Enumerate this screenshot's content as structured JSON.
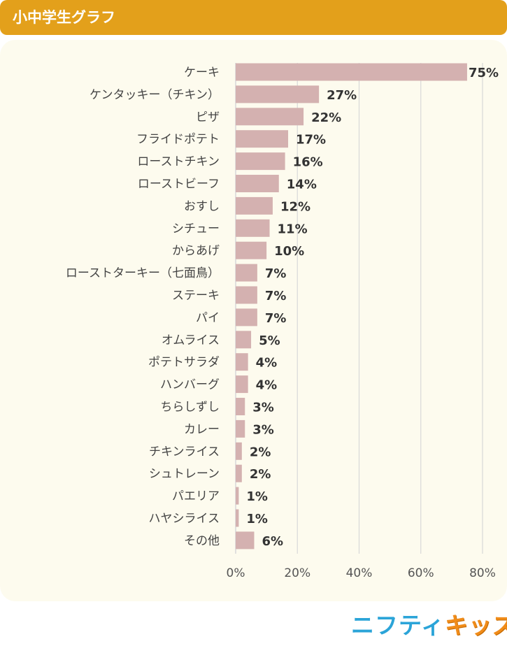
{
  "header": {
    "title": "小中学生グラフ"
  },
  "logo": {
    "part1": "ニフティ",
    "part2": "キッズ"
  },
  "colors": {
    "header": "#e3a01b",
    "panel": "#fdfbee",
    "bar": "#d4b1b0",
    "grid": "#d8d8d8",
    "label": "#444444",
    "value": "#333333"
  },
  "chart_data": {
    "type": "bar",
    "orientation": "horizontal",
    "categories": [
      "ケーキ",
      "ケンタッキー（チキン）",
      "ピザ",
      "フライドポテト",
      "ローストチキン",
      "ローストビーフ",
      "おすし",
      "シチュー",
      "からあげ",
      "ローストターキー（七面鳥）",
      "ステーキ",
      "パイ",
      "オムライス",
      "ポテトサラダ",
      "ハンバーグ",
      "ちらしずし",
      "カレー",
      "チキンライス",
      "シュトレーン",
      "パエリア",
      "ハヤシライス",
      "その他"
    ],
    "values": [
      75,
      27,
      22,
      17,
      16,
      14,
      12,
      11,
      10,
      7,
      7,
      7,
      5,
      4,
      4,
      3,
      3,
      2,
      2,
      1,
      1,
      6
    ],
    "value_labels": [
      "75%",
      "27%",
      "22%",
      "17%",
      "16%",
      "14%",
      "12%",
      "11%",
      "10%",
      "7%",
      "7%",
      "7%",
      "5%",
      "4%",
      "4%",
      "3%",
      "3%",
      "2%",
      "2%",
      "1%",
      "1%",
      "6%"
    ],
    "xticks": [
      "0%",
      "20%",
      "40%",
      "60%",
      "80%"
    ],
    "xlim": [
      0,
      80
    ],
    "grid": true
  }
}
